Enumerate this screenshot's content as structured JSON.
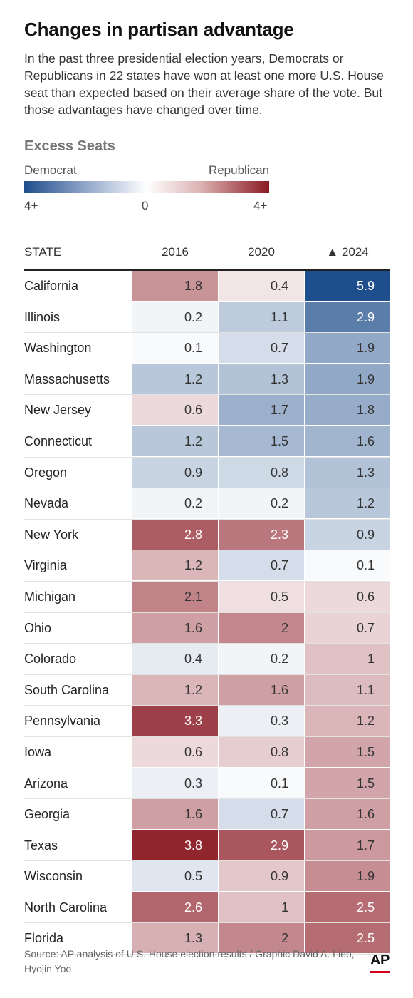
{
  "title": "Changes in partisan advantage",
  "description": "In the past three presidential election years, Democrats or Republicans in 22 states have won at least one more U.S. House seat than expected based on their average share of the vote. But those advantages have changed over time.",
  "legend": {
    "title": "Excess Seats",
    "left_label": "Democrat",
    "right_label": "Republican",
    "tick_min": "4+",
    "tick_mid": "0",
    "tick_max": "4+",
    "colors": {
      "democrat": "#1f4e8c",
      "neutral": "#ffffff",
      "republican": "#8b1a24"
    }
  },
  "source": "Source: AP analysis of U.S. House election results / Graphic David A. Lieb, Hyojin Yoo",
  "logo": "AP",
  "chart_data": {
    "type": "table",
    "columns": [
      "STATE",
      "2016",
      "2020",
      "▲ 2024"
    ],
    "sorted_by": "2024",
    "rows": [
      {
        "state": "California",
        "v2016": "1.8",
        "p2016": "R",
        "v2020": "0.4",
        "p2020": "R",
        "v2024": "5.9",
        "p2024": "D"
      },
      {
        "state": "Illinois",
        "v2016": "0.2",
        "p2016": "D",
        "v2020": "1.1",
        "p2020": "D",
        "v2024": "2.9",
        "p2024": "D"
      },
      {
        "state": "Washington",
        "v2016": "0.1",
        "p2016": "D",
        "v2020": "0.7",
        "p2020": "D",
        "v2024": "1.9",
        "p2024": "D"
      },
      {
        "state": "Massachusetts",
        "v2016": "1.2",
        "p2016": "D",
        "v2020": "1.3",
        "p2020": "D",
        "v2024": "1.9",
        "p2024": "D"
      },
      {
        "state": "New Jersey",
        "v2016": "0.6",
        "p2016": "R",
        "v2020": "1.7",
        "p2020": "D",
        "v2024": "1.8",
        "p2024": "D"
      },
      {
        "state": "Connecticut",
        "v2016": "1.2",
        "p2016": "D",
        "v2020": "1.5",
        "p2020": "D",
        "v2024": "1.6",
        "p2024": "D"
      },
      {
        "state": "Oregon",
        "v2016": "0.9",
        "p2016": "D",
        "v2020": "0.8",
        "p2020": "D",
        "v2024": "1.3",
        "p2024": "D"
      },
      {
        "state": "Nevada",
        "v2016": "0.2",
        "p2016": "D",
        "v2020": "0.2",
        "p2020": "D",
        "v2024": "1.2",
        "p2024": "D"
      },
      {
        "state": "New York",
        "v2016": "2.8",
        "p2016": "R",
        "v2020": "2.3",
        "p2020": "R",
        "v2024": "0.9",
        "p2024": "D"
      },
      {
        "state": "Virginia",
        "v2016": "1.2",
        "p2016": "R",
        "v2020": "0.7",
        "p2020": "D",
        "v2024": "0.1",
        "p2024": "D"
      },
      {
        "state": "Michigan",
        "v2016": "2.1",
        "p2016": "R",
        "v2020": "0.5",
        "p2020": "R",
        "v2024": "0.6",
        "p2024": "R"
      },
      {
        "state": "Ohio",
        "v2016": "1.6",
        "p2016": "R",
        "v2020": "2",
        "p2020": "R",
        "v2024": "0.7",
        "p2024": "R"
      },
      {
        "state": "Colorado",
        "v2016": "0.4",
        "p2016": "D",
        "v2020": "0.2",
        "p2020": "D",
        "v2024": "1",
        "p2024": "R"
      },
      {
        "state": "South Carolina",
        "v2016": "1.2",
        "p2016": "R",
        "v2020": "1.6",
        "p2020": "R",
        "v2024": "1.1",
        "p2024": "R"
      },
      {
        "state": "Pennsylvania",
        "v2016": "3.3",
        "p2016": "R",
        "v2020": "0.3",
        "p2020": "D",
        "v2024": "1.2",
        "p2024": "R"
      },
      {
        "state": "Iowa",
        "v2016": "0.6",
        "p2016": "R",
        "v2020": "0.8",
        "p2020": "R",
        "v2024": "1.5",
        "p2024": "R"
      },
      {
        "state": "Arizona",
        "v2016": "0.3",
        "p2016": "D",
        "v2020": "0.1",
        "p2020": "D",
        "v2024": "1.5",
        "p2024": "R"
      },
      {
        "state": "Georgia",
        "v2016": "1.6",
        "p2016": "R",
        "v2020": "0.7",
        "p2020": "D",
        "v2024": "1.6",
        "p2024": "R"
      },
      {
        "state": "Texas",
        "v2016": "3.8",
        "p2016": "R",
        "v2020": "2.9",
        "p2020": "R",
        "v2024": "1.7",
        "p2024": "R"
      },
      {
        "state": "Wisconsin",
        "v2016": "0.5",
        "p2016": "D",
        "v2020": "0.9",
        "p2020": "R",
        "v2024": "1.9",
        "p2024": "R"
      },
      {
        "state": "North Carolina",
        "v2016": "2.6",
        "p2016": "R",
        "v2020": "1",
        "p2020": "R",
        "v2024": "2.5",
        "p2024": "R"
      },
      {
        "state": "Florida",
        "v2016": "1.3",
        "p2016": "R",
        "v2020": "2",
        "p2020": "R",
        "v2024": "2.5",
        "p2024": "R"
      }
    ]
  }
}
